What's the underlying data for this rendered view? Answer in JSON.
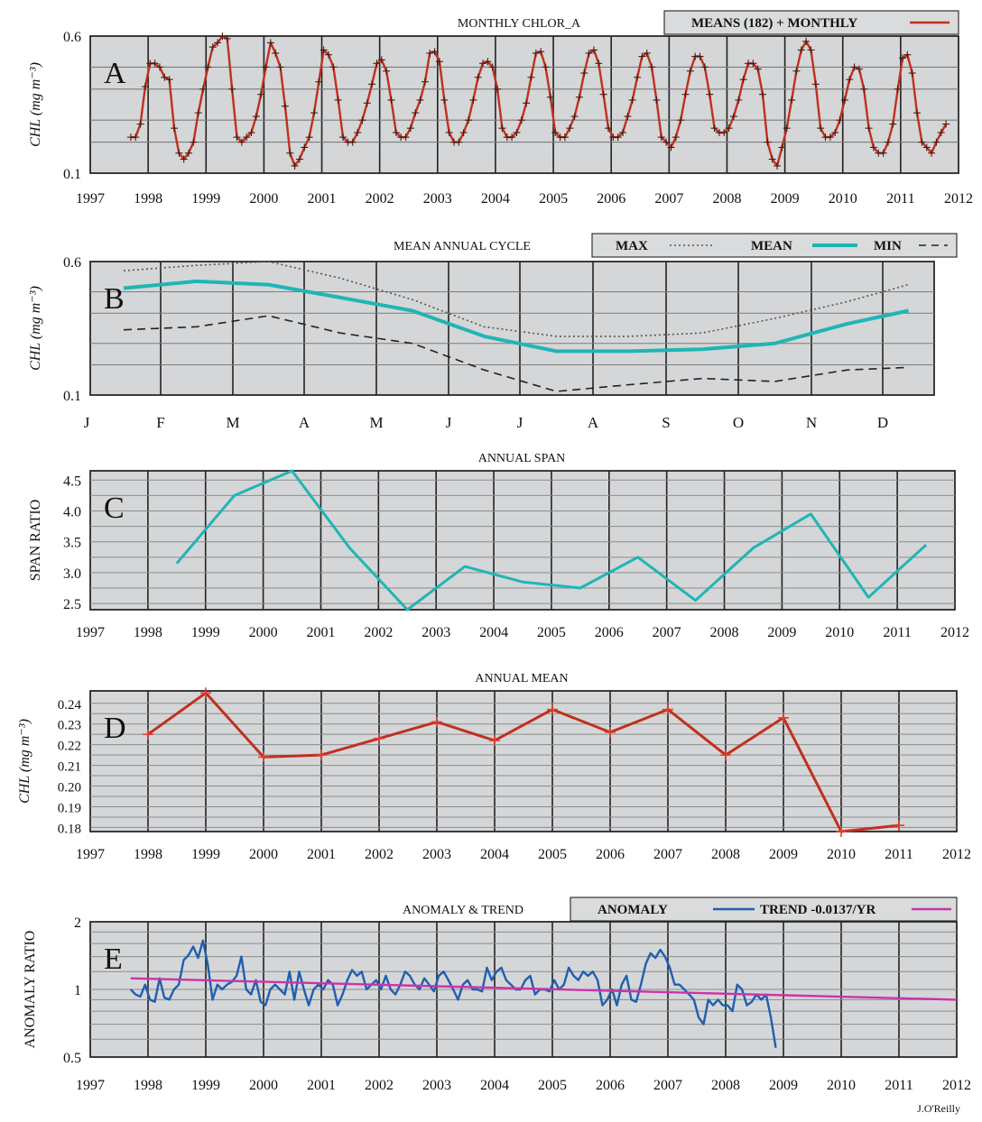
{
  "credit": "J.O'Reilly",
  "panels": {
    "A": {
      "letter": "A",
      "title": "MONTHLY CHLOR_A",
      "ylabel": "CHL  (mg m⁻³)",
      "ytick_labels": [
        "0.6",
        "0.1"
      ],
      "xtick_labels": [
        "1997",
        "1998",
        "1999",
        "2000",
        "2001",
        "2002",
        "2003",
        "2004",
        "2005",
        "2006",
        "2007",
        "2008",
        "2009",
        "2010",
        "2011",
        "2012"
      ],
      "legend": [
        {
          "label": "MEANS (182) + MONTHLY",
          "color": "#c0301e",
          "style": "solid"
        }
      ]
    },
    "B": {
      "letter": "B",
      "title": "MEAN ANNUAL CYCLE",
      "ylabel": "CHL  (mg m⁻³)",
      "ytick_labels": [
        "0.6",
        "0.1"
      ],
      "xtick_labels": [
        "J",
        "F",
        "M",
        "A",
        "M",
        "J",
        "J",
        "A",
        "S",
        "O",
        "N",
        "D"
      ],
      "legend": [
        {
          "label": "MAX",
          "color": "#555555",
          "style": "dotted"
        },
        {
          "label": "MEAN",
          "color": "#20b5b5",
          "style": "solid"
        },
        {
          "label": "MIN",
          "color": "#222222",
          "style": "dashed"
        }
      ]
    },
    "C": {
      "letter": "C",
      "title": "ANNUAL SPAN",
      "ylabel": "SPAN RATIO",
      "ytick_labels": [
        "4.5",
        "4.0",
        "3.5",
        "3.0",
        "2.5"
      ],
      "xtick_labels": [
        "1997",
        "1998",
        "1999",
        "2000",
        "2001",
        "2002",
        "2003",
        "2004",
        "2005",
        "2006",
        "2007",
        "2008",
        "2009",
        "2010",
        "2011",
        "2012"
      ]
    },
    "D": {
      "letter": "D",
      "title": "ANNUAL MEAN",
      "ylabel": "CHL  (mg m⁻³)",
      "ytick_labels": [
        "0.24",
        "0.23",
        "0.22",
        "0.21",
        "0.20",
        "0.19",
        "0.18"
      ],
      "xtick_labels": [
        "1997",
        "1998",
        "1999",
        "2000",
        "2001",
        "2002",
        "2003",
        "2004",
        "2005",
        "2006",
        "2007",
        "2008",
        "2009",
        "2010",
        "2011",
        "2012"
      ]
    },
    "E": {
      "letter": "E",
      "title": "ANOMALY & TREND",
      "ylabel": "ANOMALY  RATIO",
      "ytick_labels": [
        "2",
        "1",
        "0.5"
      ],
      "xtick_labels": [
        "1997",
        "1998",
        "1999",
        "2000",
        "2001",
        "2002",
        "2003",
        "2004",
        "2005",
        "2006",
        "2007",
        "2008",
        "2009",
        "2010",
        "2011",
        "2012"
      ],
      "legend": [
        {
          "label": "ANOMALY",
          "color": "#1f5fb0",
          "style": "solid"
        },
        {
          "label": "TREND -0.0137/YR",
          "color": "#cc33aa",
          "style": "solid"
        }
      ]
    }
  },
  "chart_data": [
    {
      "panel": "A",
      "type": "line",
      "title": "MONTHLY CHLOR_A",
      "ylabel": "CHL (mg m-3)",
      "scale": "log",
      "ylim": [
        0.1,
        0.6
      ],
      "xlim": [
        1997,
        2012
      ],
      "legend_position": "top-right",
      "grid": true,
      "series": [
        {
          "name": "MEANS (182) + MONTHLY",
          "color": "#c0301e",
          "start": 1997.7,
          "step": 0.0833333,
          "values": [
            0.16,
            0.16,
            0.19,
            0.31,
            0.42,
            0.42,
            0.4,
            0.35,
            0.34,
            0.18,
            0.13,
            0.12,
            0.13,
            0.15,
            0.22,
            0.3,
            0.4,
            0.52,
            0.55,
            0.6,
            0.58,
            0.3,
            0.16,
            0.15,
            0.16,
            0.17,
            0.21,
            0.28,
            0.4,
            0.55,
            0.48,
            0.4,
            0.24,
            0.13,
            0.11,
            0.12,
            0.14,
            0.16,
            0.22,
            0.33,
            0.5,
            0.47,
            0.4,
            0.26,
            0.16,
            0.15,
            0.15,
            0.17,
            0.2,
            0.25,
            0.32,
            0.42,
            0.44,
            0.38,
            0.26,
            0.17,
            0.16,
            0.16,
            0.18,
            0.22,
            0.26,
            0.33,
            0.48,
            0.49,
            0.43,
            0.26,
            0.17,
            0.15,
            0.15,
            0.17,
            0.2,
            0.26,
            0.35,
            0.42,
            0.43,
            0.4,
            0.3,
            0.18,
            0.16,
            0.16,
            0.17,
            0.2,
            0.25,
            0.35,
            0.48,
            0.49,
            0.4,
            0.27,
            0.17,
            0.16,
            0.16,
            0.18,
            0.21,
            0.27,
            0.37,
            0.48,
            0.5,
            0.42,
            0.28,
            0.18,
            0.16,
            0.16,
            0.17,
            0.21,
            0.26,
            0.35,
            0.46,
            0.48,
            0.4,
            0.26,
            0.16,
            0.15,
            0.14,
            0.16,
            0.2,
            0.28,
            0.38,
            0.46,
            0.46,
            0.4,
            0.28,
            0.18,
            0.17,
            0.17,
            0.18,
            0.21,
            0.26,
            0.34,
            0.42,
            0.42,
            0.39,
            0.28,
            0.15,
            0.12,
            0.11,
            0.14,
            0.18,
            0.26,
            0.38,
            0.5,
            0.56,
            0.5,
            0.32,
            0.18,
            0.16,
            0.16,
            0.17,
            0.2,
            0.26,
            0.34,
            0.4,
            0.39,
            0.3,
            0.18,
            0.14,
            0.13,
            0.13,
            0.15,
            0.19,
            0.3,
            0.45,
            0.47,
            0.37,
            0.22,
            0.15,
            0.14,
            0.13,
            0.15,
            0.17,
            0.19
          ]
        }
      ]
    },
    {
      "panel": "B",
      "type": "line",
      "title": "MEAN ANNUAL CYCLE",
      "ylabel": "CHL (mg m-3)",
      "scale": "log",
      "ylim": [
        0.1,
        0.6
      ],
      "categories": [
        "Jan",
        "Feb",
        "Mar",
        "Apr",
        "May",
        "Jun",
        "Jul",
        "Aug",
        "Sep",
        "Oct",
        "Nov",
        "Dec"
      ],
      "legend_position": "top-right",
      "grid": true,
      "series": [
        {
          "name": "MAX",
          "color": "#555555",
          "style": "dotted",
          "values": [
            0.53,
            0.57,
            0.6,
            0.48,
            0.36,
            0.25,
            0.22,
            0.22,
            0.23,
            0.28,
            0.35,
            0.44
          ]
        },
        {
          "name": "MEAN",
          "color": "#20b5b5",
          "style": "solid",
          "values": [
            0.42,
            0.46,
            0.44,
            0.37,
            0.31,
            0.22,
            0.18,
            0.18,
            0.185,
            0.2,
            0.26,
            0.31
          ]
        },
        {
          "name": "MIN",
          "color": "#222222",
          "style": "dashed",
          "values": [
            0.24,
            0.25,
            0.29,
            0.23,
            0.2,
            0.14,
            0.105,
            0.115,
            0.125,
            0.12,
            0.14,
            0.145
          ]
        }
      ]
    },
    {
      "panel": "C",
      "type": "line",
      "title": "ANNUAL SPAN",
      "ylabel": "SPAN RATIO",
      "ylim": [
        2.4,
        4.65
      ],
      "xlim": [
        1997,
        2012
      ],
      "grid": true,
      "x": [
        1998.5,
        1999.5,
        2000.5,
        2001.5,
        2002.5,
        2003.5,
        2004.5,
        2005.5,
        2006.5,
        2007.5,
        2008.5,
        2009.5,
        2010.5,
        2011.5
      ],
      "series": [
        {
          "color": "#20b5b5",
          "values": [
            3.15,
            4.25,
            4.65,
            3.4,
            2.4,
            3.1,
            2.85,
            2.75,
            3.25,
            2.55,
            3.4,
            3.95,
            2.6,
            3.45
          ]
        }
      ]
    },
    {
      "panel": "D",
      "type": "line",
      "title": "ANNUAL MEAN",
      "ylabel": "CHL (mg m-3)",
      "ylim": [
        0.178,
        0.246
      ],
      "xlim": [
        1997,
        2012
      ],
      "grid": true,
      "x": [
        1998,
        1999,
        2000,
        2001,
        2002,
        2003,
        2004,
        2005,
        2006,
        2007,
        2008,
        2009,
        2010,
        2011
      ],
      "series": [
        {
          "color": "#c0301e",
          "values": [
            0.225,
            0.245,
            0.214,
            0.215,
            0.223,
            0.231,
            0.222,
            0.237,
            0.226,
            0.237,
            0.215,
            0.233,
            0.178,
            0.181
          ]
        }
      ]
    },
    {
      "panel": "E",
      "type": "line",
      "title": "ANOMALY & TREND",
      "ylabel": "ANOMALY RATIO",
      "scale": "log",
      "ylim": [
        0.5,
        2.0
      ],
      "xlim": [
        1997,
        2012
      ],
      "legend_position": "top-right",
      "grid": true,
      "series": [
        {
          "name": "ANOMALY",
          "color": "#1f5fb0",
          "start": 1997.7,
          "step": 0.0833333,
          "values": [
            1.0,
            0.95,
            0.93,
            1.05,
            0.9,
            0.88,
            1.12,
            0.92,
            0.9,
            1.0,
            1.05,
            1.35,
            1.42,
            1.55,
            1.38,
            1.65,
            1.3,
            0.9,
            1.05,
            1.0,
            1.05,
            1.08,
            1.15,
            1.4,
            1.0,
            0.95,
            1.1,
            0.88,
            0.85,
            1.0,
            1.05,
            1.0,
            0.95,
            1.2,
            0.9,
            1.2,
            1.0,
            0.85,
            1.0,
            1.05,
            1.0,
            1.1,
            1.05,
            0.85,
            0.95,
            1.1,
            1.22,
            1.15,
            1.2,
            1.0,
            1.05,
            1.1,
            1.0,
            1.15,
            1.0,
            0.95,
            1.05,
            1.2,
            1.15,
            1.05,
            1.0,
            1.12,
            1.05,
            0.98,
            1.15,
            1.2,
            1.1,
            1.0,
            0.9,
            1.05,
            1.1,
            1.0,
            1.0,
            0.98,
            1.25,
            1.1,
            1.2,
            1.25,
            1.1,
            1.05,
            1.0,
            1.0,
            1.1,
            1.15,
            0.95,
            1.0,
            1.0,
            0.98,
            1.1,
            1.0,
            1.05,
            1.25,
            1.15,
            1.1,
            1.2,
            1.15,
            1.2,
            1.1,
            0.85,
            0.9,
            1.0,
            0.85,
            1.05,
            1.15,
            0.9,
            0.88,
            1.05,
            1.3,
            1.45,
            1.38,
            1.5,
            1.4,
            1.25,
            1.05,
            1.05,
            1.0,
            0.95,
            0.9,
            0.75,
            0.7,
            0.9,
            0.85,
            0.9,
            0.85,
            0.85,
            0.8,
            1.05,
            1.0,
            0.85,
            0.88,
            0.95,
            0.9,
            0.95,
            0.75,
            0.55
          ]
        },
        {
          "name": "TREND -0.0137/YR",
          "color": "#cc33aa",
          "x": [
            1997.7,
            2012.0
          ],
          "values": [
            1.12,
            0.9
          ]
        }
      ]
    }
  ]
}
